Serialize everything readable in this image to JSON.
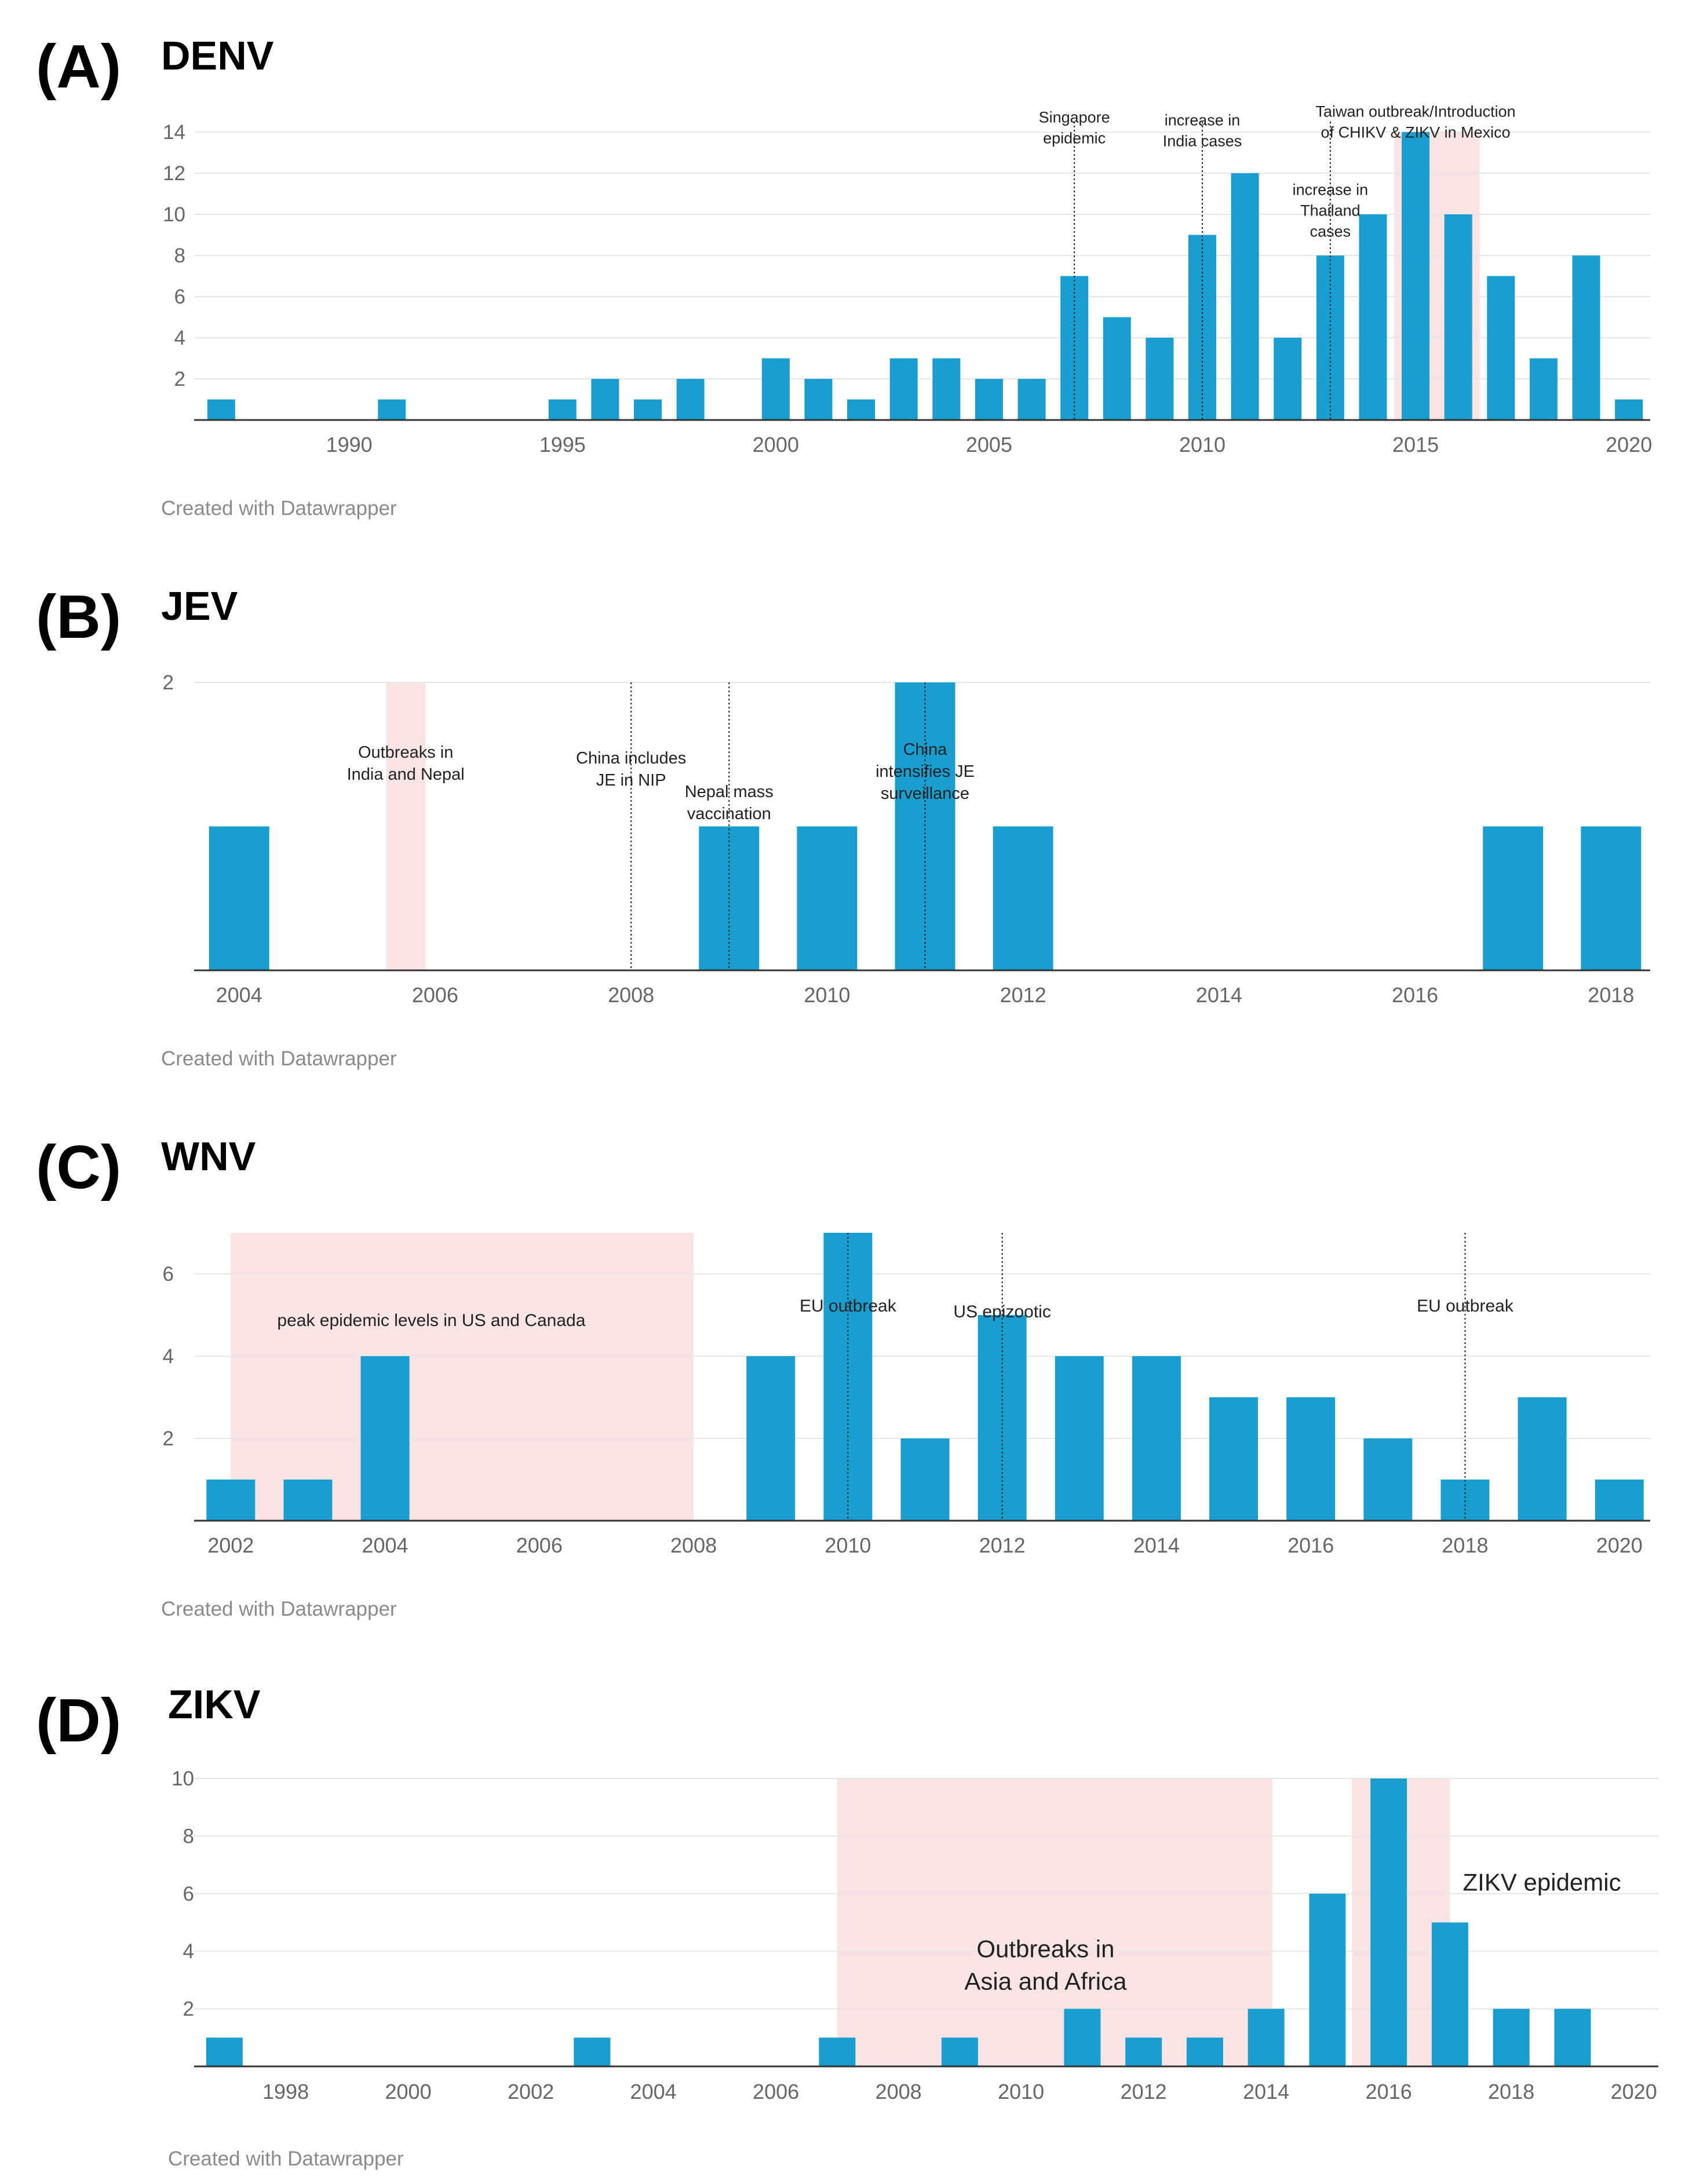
{
  "credit": "Created with Datawrapper",
  "colors": {
    "bar": "#1a9ecf",
    "shade": "#f9e3e3",
    "grid": "#e6e6e6",
    "axis": "#333333",
    "tick": "#666666"
  },
  "chart_data": [
    {
      "panel_letter": "(A)",
      "title": "DENV",
      "type": "bar",
      "x": [
        1987,
        1991,
        1995,
        1996,
        1997,
        1998,
        2000,
        2001,
        2002,
        2003,
        2004,
        2005,
        2006,
        2007,
        2008,
        2009,
        2010,
        2011,
        2012,
        2013,
        2014,
        2015,
        2016,
        2017,
        2018,
        2019,
        2020
      ],
      "values": [
        1,
        1,
        1,
        2,
        1,
        2,
        3,
        2,
        1,
        3,
        3,
        2,
        2,
        7,
        5,
        4,
        9,
        12,
        4,
        8,
        10,
        14,
        10,
        7,
        3,
        8,
        1
      ],
      "xlim": [
        1986.5,
        2020.5
      ],
      "ylim": [
        0,
        14
      ],
      "yticks": [
        2,
        4,
        6,
        8,
        10,
        12,
        14
      ],
      "xticks": [
        1990,
        1995,
        2000,
        2005,
        2010,
        2015,
        2020
      ],
      "xticklabels": [
        "1990",
        "1995",
        "2000",
        "2005",
        "2010",
        "2015",
        "2020"
      ],
      "shaded": [
        {
          "from": 2014.5,
          "to": 2016.5
        }
      ],
      "annotations": [
        {
          "x": 2007,
          "lines": [
            "Singapore",
            "epidemic"
          ]
        },
        {
          "x": 2010,
          "lines": [
            "increase in",
            "India cases"
          ]
        },
        {
          "x": 2013,
          "lines": [
            "increase in",
            "Thailand",
            "cases"
          ]
        },
        {
          "x": 2015,
          "lines": [
            "Taiwan outbreak/Introduction",
            "of CHIKV & ZIKV in Mexico"
          ]
        }
      ]
    },
    {
      "panel_letter": "(B)",
      "title": "JEV",
      "type": "bar",
      "x": [
        2004,
        2009,
        2010,
        2011,
        2012,
        2017,
        2018
      ],
      "values": [
        1,
        1,
        1,
        2,
        1,
        1,
        1
      ],
      "xlim": [
        2003.6,
        2018.4
      ],
      "ylim": [
        0,
        2
      ],
      "yticks": [
        2
      ],
      "xticks": [
        2004,
        2006,
        2008,
        2010,
        2012,
        2014,
        2016,
        2018
      ],
      "xticklabels": [
        "2004",
        "2006",
        "2008",
        "2010",
        "2012",
        "2014",
        "2016",
        "2018"
      ],
      "shaded": [
        {
          "from": 2005.5,
          "to": 2005.9
        }
      ],
      "annotations": [
        {
          "x": 2005.7,
          "lines": [
            "Outbreaks in",
            "India and Nepal"
          ]
        },
        {
          "x": 2008,
          "lines": [
            "China includes",
            "JE in NIP"
          ]
        },
        {
          "x": 2009,
          "lines": [
            "Nepal mass",
            "vaccination"
          ]
        },
        {
          "x": 2011,
          "lines": [
            "China",
            "intensifies JE",
            "surveillance"
          ]
        }
      ]
    },
    {
      "panel_letter": "(C)",
      "title": "WNV",
      "type": "bar",
      "x": [
        2002,
        2003,
        2004,
        2009,
        2010,
        2011,
        2012,
        2013,
        2014,
        2015,
        2016,
        2017,
        2018,
        2019,
        2020
      ],
      "values": [
        1,
        1,
        4,
        4,
        7,
        2,
        5,
        4,
        4,
        3,
        3,
        2,
        1,
        3,
        1
      ],
      "xlim": [
        2001.6,
        2020.4
      ],
      "ylim": [
        0,
        7
      ],
      "yticks": [
        2,
        4,
        6
      ],
      "xticks": [
        2002,
        2004,
        2006,
        2008,
        2010,
        2012,
        2014,
        2016,
        2018,
        2020
      ],
      "xticklabels": [
        "2002",
        "2004",
        "2006",
        "2008",
        "2010",
        "2012",
        "2014",
        "2016",
        "2018",
        "2020"
      ],
      "shaded": [
        {
          "from": 2002,
          "to": 2008
        }
      ],
      "annotations": [
        {
          "x": 2004.6,
          "lines": [
            "peak epidemic levels in US and Canada"
          ]
        },
        {
          "x": 2010,
          "lines": [
            "EU outbreak"
          ]
        },
        {
          "x": 2012,
          "lines": [
            "US epizootic"
          ]
        },
        {
          "x": 2018,
          "lines": [
            "EU outbreak"
          ]
        }
      ]
    },
    {
      "panel_letter": "(D)",
      "title": "ZIKV",
      "type": "bar",
      "x": [
        1997,
        2003,
        2007,
        2009,
        2011,
        2012,
        2013,
        2014,
        2015,
        2016,
        2017,
        2018,
        2019
      ],
      "values": [
        1,
        1,
        1,
        1,
        2,
        1,
        1,
        2,
        6,
        10,
        5,
        2,
        2
      ],
      "xlim": [
        1996.6,
        2020.4
      ],
      "ylim": [
        0,
        10
      ],
      "yticks": [
        2,
        4,
        6,
        8,
        10
      ],
      "xticks": [
        1998,
        2000,
        2002,
        2004,
        2006,
        2008,
        2010,
        2012,
        2014,
        2016,
        2018,
        2020
      ],
      "xticklabels": [
        "1998",
        "2000",
        "2002",
        "2004",
        "2006",
        "2008",
        "2010",
        "2012",
        "2014",
        "2016",
        "2018",
        "2020"
      ],
      "shaded": [
        {
          "from": 2007,
          "to": 2014.1
        },
        {
          "from": 2015.4,
          "to": 2017
        }
      ],
      "annotations": [
        {
          "x": 2010.4,
          "lines": [
            "Outbreaks in",
            "Asia and Africa"
          ]
        },
        {
          "x": 2018.5,
          "lines": [
            "ZIKV epidemic"
          ]
        }
      ]
    }
  ]
}
